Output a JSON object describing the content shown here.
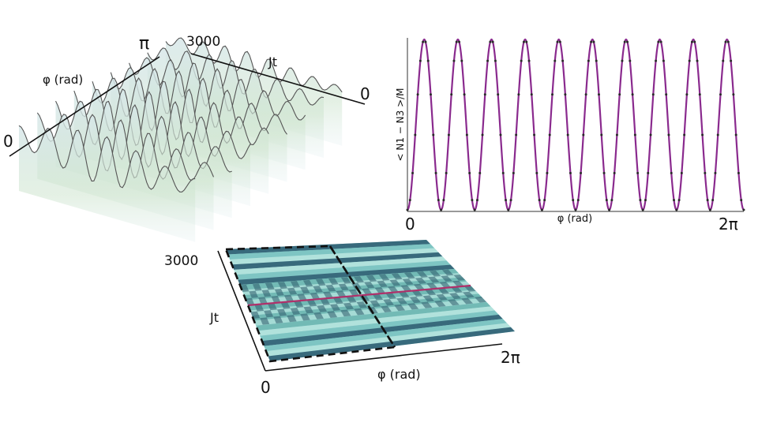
{
  "panel_3d": {
    "phi_label": "φ (rad)",
    "phi_min_label": "0",
    "phi_max_label": "π",
    "jt_label": "Jt",
    "jt_max_label": "3000",
    "jt_min_label": "0"
  },
  "panel_map": {
    "phi_label": "φ (rad)",
    "phi_min_label": "0",
    "phi_max_label": "2π",
    "jt_label": "Jt",
    "jt_max_label": "3000"
  },
  "colors": {
    "series_line": "#8a2a8e",
    "series_marker": "#2a2a2a",
    "surface_fill": "#dcebe8",
    "surface_line": "#555555",
    "map_base": "#8fd0cc",
    "map_dark": "#2f5e73",
    "map_highlight": "#b0306a"
  },
  "chart_data": [
    {
      "type": "line",
      "title": "",
      "xlabel": "φ (rad)",
      "ylabel": "< N1 − N3 >/M",
      "x_tick_labels": [
        "0",
        "2π"
      ],
      "xlim": [
        0,
        6.2832
      ],
      "ylim": [
        -1,
        1
      ],
      "grid": false,
      "oscillations": 10,
      "sample_points": 130,
      "series": [
        {
          "name": "",
          "function": "-cos(10*phi)",
          "line": true,
          "markers": true
        }
      ]
    }
  ]
}
